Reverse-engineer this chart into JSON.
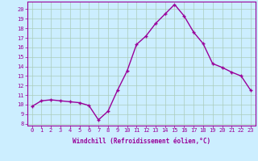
{
  "x": [
    0,
    1,
    2,
    3,
    4,
    5,
    6,
    7,
    8,
    9,
    10,
    11,
    12,
    13,
    14,
    15,
    16,
    17,
    18,
    19,
    20,
    21,
    22,
    23
  ],
  "y": [
    9.8,
    10.4,
    10.5,
    10.4,
    10.3,
    10.2,
    9.9,
    8.4,
    9.3,
    11.5,
    13.5,
    16.3,
    17.2,
    18.5,
    19.5,
    20.5,
    19.3,
    17.6,
    16.4,
    14.3,
    13.9,
    13.4,
    13.0,
    11.5
  ],
  "line_color": "#990099",
  "marker": "+",
  "marker_size": 3,
  "xlabel": "Windchill (Refroidissement éolien,°C)",
  "yticks": [
    8,
    9,
    10,
    11,
    12,
    13,
    14,
    15,
    16,
    17,
    18,
    19,
    20
  ],
  "ylim": [
    7.8,
    20.8
  ],
  "xlim": [
    -0.5,
    23.5
  ],
  "bg_color": "#cceeff",
  "grid_color": "#aaccbb",
  "line_color_spine": "#990099",
  "tick_color": "#990099",
  "label_color": "#990099",
  "font_size_tick": 5,
  "font_size_label": 5.5,
  "linewidth": 1.0
}
